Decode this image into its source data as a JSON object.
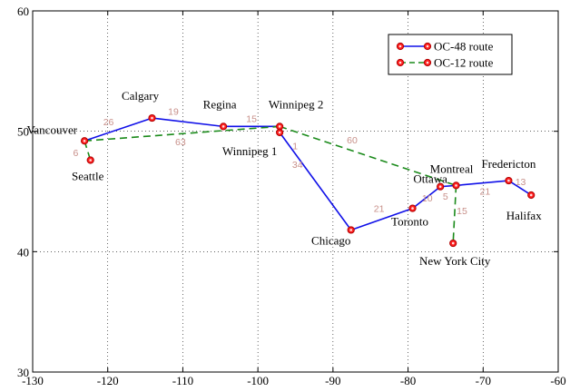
{
  "chart_data": {
    "type": "line",
    "xlim": [
      -130,
      -60
    ],
    "ylim": [
      30,
      60
    ],
    "x_ticks": [
      "-130",
      "-120",
      "-110",
      "-100",
      "-90",
      "-80",
      "-70",
      "-60"
    ],
    "y_ticks": [
      "30",
      "40",
      "50",
      "60"
    ],
    "grid": "dotted",
    "legend_position": "top-right",
    "colors": {
      "oc48": "#1010e8",
      "oc12": "#1a8a1a",
      "node_fill": "#ff2020",
      "node_stroke": "#b00000",
      "edge_label": "#c8908a"
    },
    "nodes": [
      {
        "id": "vancouver",
        "name": "Vancouver",
        "x": -123.1,
        "y": 49.2
      },
      {
        "id": "seattle",
        "name": "Seattle",
        "x": -122.3,
        "y": 47.6
      },
      {
        "id": "calgary",
        "name": "Calgary",
        "x": -114.1,
        "y": 51.1
      },
      {
        "id": "regina",
        "name": "Regina",
        "x": -104.6,
        "y": 50.4
      },
      {
        "id": "winnipeg1",
        "name": "Winnipeg 1",
        "x": -97.1,
        "y": 49.9
      },
      {
        "id": "winnipeg2",
        "name": "Winnipeg 2",
        "x": -97.1,
        "y": 50.4
      },
      {
        "id": "chicago",
        "name": "Chicago",
        "x": -87.6,
        "y": 41.8
      },
      {
        "id": "toronto",
        "name": "Toronto",
        "x": -79.4,
        "y": 43.6
      },
      {
        "id": "ottawa",
        "name": "Ottawa",
        "x": -75.7,
        "y": 45.4
      },
      {
        "id": "montreal",
        "name": "Montreal",
        "x": -73.6,
        "y": 45.5
      },
      {
        "id": "fredericton",
        "name": "Fredericton",
        "x": -66.6,
        "y": 45.9
      },
      {
        "id": "halifax",
        "name": "Halifax",
        "x": -63.6,
        "y": 44.7
      },
      {
        "id": "newyork",
        "name": "New York City",
        "x": -74.0,
        "y": 40.7
      }
    ],
    "series": [
      {
        "name": "OC-48 route",
        "style": "solid",
        "links": [
          {
            "from": "vancouver",
            "to": "calgary",
            "label": "26"
          },
          {
            "from": "calgary",
            "to": "regina",
            "label": "19"
          },
          {
            "from": "regina",
            "to": "winnipeg2",
            "label": "15"
          },
          {
            "from": "winnipeg2",
            "to": "winnipeg1",
            "label": "1"
          },
          {
            "from": "winnipeg1",
            "to": "chicago",
            "label": "34"
          },
          {
            "from": "chicago",
            "to": "toronto",
            "label": "21"
          },
          {
            "from": "toronto",
            "to": "ottawa",
            "label": "10"
          },
          {
            "from": "ottawa",
            "to": "montreal",
            "label": "5"
          },
          {
            "from": "montreal",
            "to": "fredericton",
            "label": "21"
          },
          {
            "from": "fredericton",
            "to": "halifax",
            "label": "13"
          }
        ]
      },
      {
        "name": "OC-12 route",
        "style": "dashed",
        "links": [
          {
            "from": "vancouver",
            "to": "seattle",
            "label": "6"
          },
          {
            "from": "vancouver",
            "to": "winnipeg2",
            "label": "63"
          },
          {
            "from": "winnipeg2",
            "to": "montreal",
            "label": "60"
          },
          {
            "from": "montreal",
            "to": "newyork",
            "label": "15"
          }
        ]
      }
    ]
  }
}
